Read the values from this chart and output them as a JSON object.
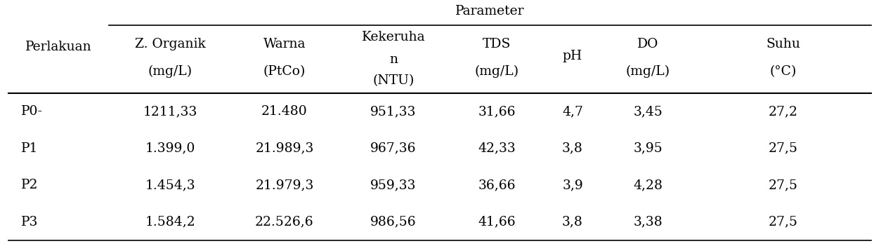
{
  "title": "Parameter",
  "perlakuan_label": "Perlakuan",
  "col_headers": [
    [
      "Z. Organik",
      "(mg/L)",
      ""
    ],
    [
      "Warna",
      "(PtCo)",
      ""
    ],
    [
      "Kekeruha",
      "n",
      "(NTU)"
    ],
    [
      "TDS",
      "(mg/L)",
      ""
    ],
    [
      "pH",
      "",
      ""
    ],
    [
      "DO",
      "(mg/L)",
      ""
    ],
    [
      "Suhu",
      "(°C)",
      ""
    ]
  ],
  "rows": [
    [
      "P0-",
      "1211,33",
      "21.480",
      "951,33",
      "31,66",
      "4,7",
      "3,45",
      "27,2"
    ],
    [
      "P1",
      "1.399,0",
      "21.989,3",
      "967,36",
      "42,33",
      "3,8",
      "3,95",
      "27,5"
    ],
    [
      "P2",
      "1.454,3",
      "21.979,3",
      "959,33",
      "36,66",
      "3,9",
      "4,28",
      "27,5"
    ],
    [
      "P3",
      "1.584,2",
      "22.526,6",
      "986,56",
      "41,66",
      "3,8",
      "3,38",
      "27,5"
    ]
  ],
  "background_color": "#ffffff",
  "text_color": "#000000",
  "line_color": "#000000",
  "font_size": 13.5,
  "superscript_degree": "°"
}
